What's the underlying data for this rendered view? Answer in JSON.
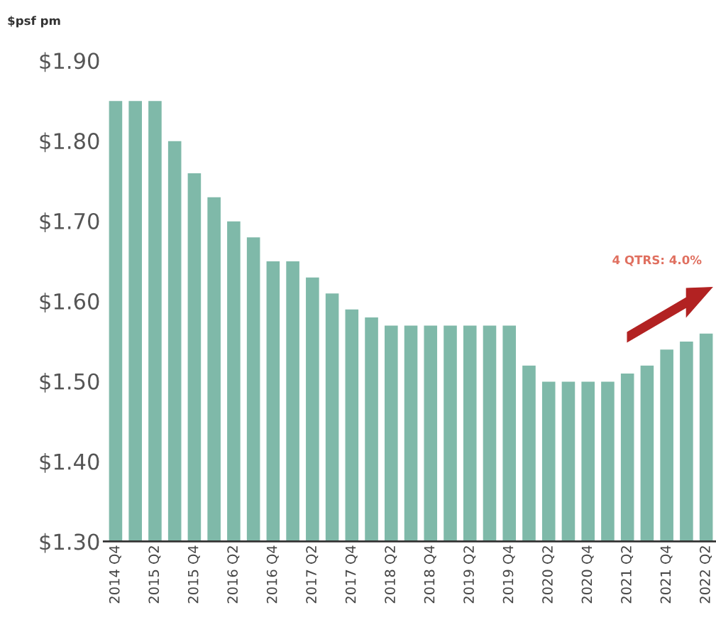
{
  "chart_data": {
    "type": "bar",
    "ylabel": "$psf pm",
    "categories": [
      "2014 Q4",
      null,
      "2015 Q2",
      null,
      "2015 Q4",
      null,
      "2016 Q2",
      null,
      "2016 Q4",
      null,
      "2017 Q2",
      null,
      "2017 Q4",
      null,
      "2018 Q2",
      null,
      "2018 Q4",
      null,
      "2019 Q2",
      null,
      "2019 Q4",
      null,
      "2020 Q2",
      null,
      "2020 Q4",
      null,
      "2021 Q2",
      null,
      "2021 Q4",
      null,
      "2022 Q2"
    ],
    "series": [
      {
        "color": "#7fb9a9",
        "values": [
          1.85,
          1.85,
          1.85,
          1.8,
          1.76,
          1.73,
          1.7,
          1.68,
          1.65,
          1.65,
          1.63,
          1.61,
          1.59,
          1.58,
          1.57,
          1.57,
          1.57,
          1.57,
          1.57,
          1.57,
          1.57,
          1.52,
          1.5,
          1.5,
          1.5,
          1.5,
          1.51,
          1.52,
          1.54,
          1.55,
          1.56
        ]
      }
    ],
    "ylim": [
      1.3,
      1.9
    ],
    "yticks": [
      {
        "value": 1.3,
        "label": "$1.30"
      },
      {
        "value": 1.4,
        "label": "$1.40"
      },
      {
        "value": 1.5,
        "label": "$1.50"
      },
      {
        "value": 1.6,
        "label": "$1.60"
      },
      {
        "value": 1.7,
        "label": "$1.70"
      },
      {
        "value": 1.8,
        "label": "$1.80"
      },
      {
        "value": 1.9,
        "label": "$1.90"
      }
    ],
    "annotations": [
      "4 QTRS: 4.0%"
    ],
    "grid": false,
    "legend": false
  }
}
